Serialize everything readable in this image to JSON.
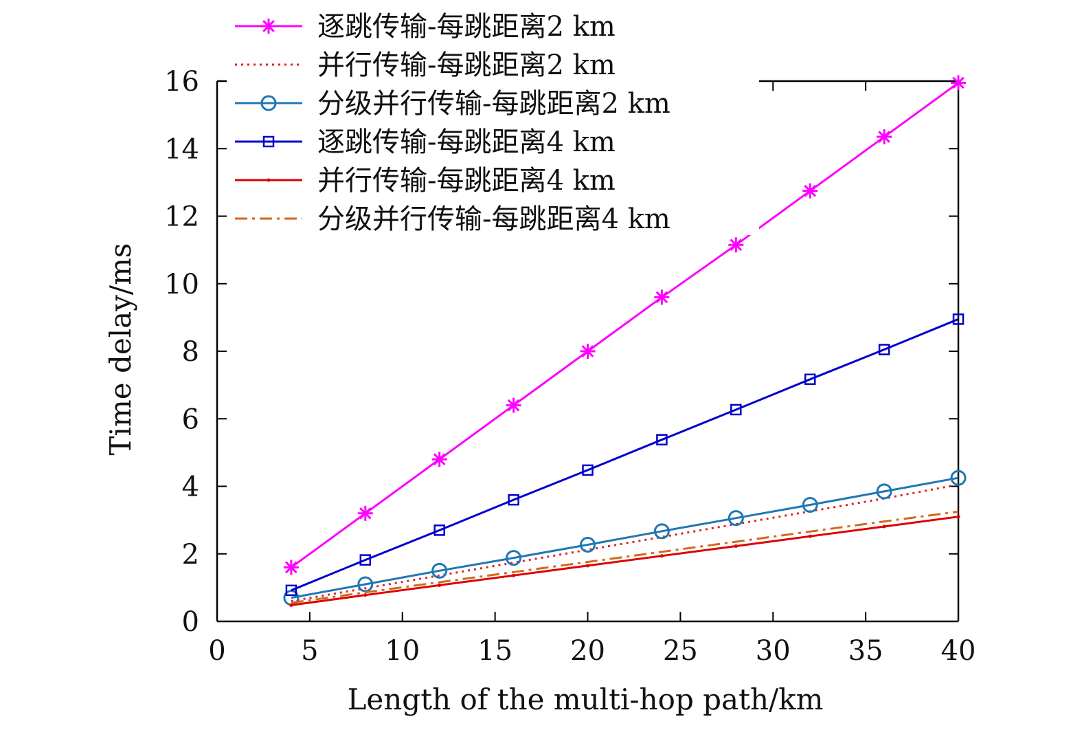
{
  "chart_data": {
    "type": "line",
    "title": "",
    "xlabel": "Length of the multi-hop path/km",
    "ylabel": "Time delay/ms",
    "xlim": [
      0,
      40
    ],
    "ylim": [
      0,
      16
    ],
    "xticks": [
      0,
      5,
      10,
      15,
      20,
      25,
      30,
      35,
      40
    ],
    "yticks": [
      0,
      2,
      4,
      6,
      8,
      10,
      12,
      14,
      16
    ],
    "grid": false,
    "legend_position": "top-left",
    "series": [
      {
        "name": "逐跳传输-每跳距离2 km",
        "color": "#ff00ff",
        "line_style": "solid",
        "marker": "asterisk",
        "x": [
          4,
          8,
          12,
          16,
          20,
          24,
          28,
          32,
          36,
          40
        ],
        "values": [
          1.6,
          3.2,
          4.8,
          6.4,
          8.0,
          9.6,
          11.15,
          12.75,
          14.35,
          15.95
        ]
      },
      {
        "name": "并行传输-每跳距离2 km",
        "color": "#dd2222",
        "line_style": "dotted",
        "marker": "none",
        "x": [
          4,
          8,
          12,
          16,
          20,
          24,
          28,
          32,
          36,
          40
        ],
        "values": [
          0.6,
          0.98,
          1.36,
          1.74,
          2.12,
          2.5,
          2.88,
          3.26,
          3.64,
          4.05
        ]
      },
      {
        "name": "分级并行传输-每跳距离2 km",
        "color": "#1f77b4",
        "line_style": "solid",
        "marker": "circle",
        "x": [
          4,
          8,
          12,
          16,
          20,
          24,
          28,
          32,
          36,
          40
        ],
        "values": [
          0.7,
          1.1,
          1.5,
          1.88,
          2.27,
          2.67,
          3.06,
          3.45,
          3.85,
          4.25
        ]
      },
      {
        "name": "逐跳传输-每跳距离4 km",
        "color": "#0000cc",
        "line_style": "solid",
        "marker": "square",
        "x": [
          4,
          8,
          12,
          16,
          20,
          24,
          28,
          32,
          36,
          40
        ],
        "values": [
          0.92,
          1.82,
          2.7,
          3.6,
          4.48,
          5.38,
          6.27,
          7.17,
          8.05,
          8.95
        ]
      },
      {
        "name": "并行传输-每跳距离4 km",
        "color": "#dd0000",
        "line_style": "solid",
        "marker": "dot",
        "x": [
          4,
          8,
          12,
          16,
          20,
          24,
          28,
          32,
          36,
          40
        ],
        "values": [
          0.48,
          0.78,
          1.07,
          1.36,
          1.65,
          1.94,
          2.23,
          2.52,
          2.81,
          3.1
        ]
      },
      {
        "name": "分级并行传输-每跳距离4 km",
        "color": "#d2691e",
        "line_style": "dashdot",
        "marker": "none",
        "x": [
          4,
          8,
          12,
          16,
          20,
          24,
          28,
          32,
          36,
          40
        ],
        "values": [
          0.55,
          0.86,
          1.16,
          1.46,
          1.76,
          2.06,
          2.36,
          2.66,
          2.96,
          3.25
        ]
      }
    ]
  }
}
